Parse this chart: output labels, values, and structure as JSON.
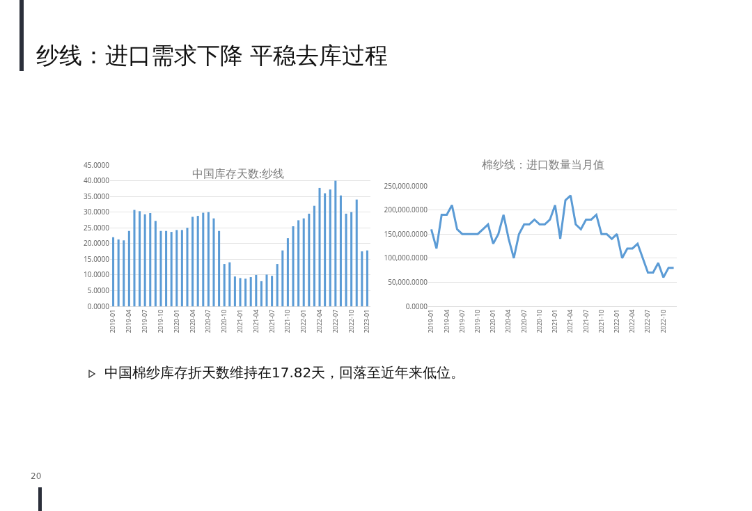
{
  "chart_data": [
    {
      "type": "other",
      "title": "纱线：进口需求下降 平稳去库过程",
      "annotations": [
        "中国棉纱库存折天数维持在17.82天，回落至近年来低位。",
        "20"
      ]
    },
    {
      "type": "bar",
      "title": "中国库存天数:纱线",
      "categories": [
        "2019-01",
        null,
        null,
        "2019-04",
        null,
        null,
        "2019-07",
        null,
        null,
        "2019-10",
        null,
        null,
        "2020-01",
        null,
        null,
        "2020-04",
        null,
        null,
        "2020-07",
        null,
        null,
        "2020-10",
        null,
        null,
        "2021-01",
        null,
        null,
        "2021-04",
        null,
        null,
        "2021-07",
        null,
        null,
        "2021-10",
        null,
        null,
        "2022-01",
        null,
        null,
        "2022-04",
        null,
        null,
        "2022-07",
        null,
        null,
        "2022-10",
        null,
        null,
        "2023-01"
      ],
      "series": [
        {
          "color": "#5b9bd5",
          "values": [
            22,
            21.3,
            21,
            24,
            30.7,
            30.3,
            29.3,
            29.7,
            27.2,
            24,
            24,
            23.7,
            24.3,
            24.3,
            25,
            28.5,
            28.8,
            29.8,
            30,
            28,
            24,
            13.5,
            14,
            9.5,
            9,
            8.8,
            9.3,
            10,
            8,
            10.1,
            9.7,
            13.5,
            17.8,
            21.7,
            25.5,
            27.4,
            28,
            29.5,
            32,
            37.7,
            36,
            37.2,
            40,
            35.3,
            29.5,
            30,
            34,
            17.5,
            17.8
          ]
        }
      ],
      "ylim": [
        0,
        45
      ],
      "yticks": [
        {
          "value": 0,
          "label": "0.0000"
        },
        {
          "value": 5,
          "label": "5.0000"
        },
        {
          "value": 10,
          "label": "10.0000"
        },
        {
          "value": 15,
          "label": "15.0000"
        },
        {
          "value": 20,
          "label": "20.0000"
        },
        {
          "value": 25,
          "label": "25.0000"
        },
        {
          "value": 30,
          "label": "30.0000"
        },
        {
          "value": 35,
          "label": "35.0000"
        },
        {
          "value": 40,
          "label": "40.0000"
        },
        {
          "value": 45,
          "label": "45.0000"
        }
      ],
      "grid": "y"
    },
    {
      "type": "line",
      "title": "棉纱线：进口数量当月值",
      "categories": [
        "2019-01",
        null,
        null,
        "2019-04",
        null,
        null,
        "2019-07",
        null,
        null,
        "2019-10",
        null,
        null,
        "2020-01",
        null,
        null,
        "2020-04",
        null,
        null,
        "2020-07",
        null,
        null,
        "2020-10",
        null,
        null,
        "2021-01",
        null,
        null,
        "2021-04",
        null,
        null,
        "2021-07",
        null,
        null,
        "2021-10",
        null,
        null,
        "2022-01",
        null,
        null,
        "2022-04",
        null,
        null,
        "2022-07",
        null,
        null,
        "2022-10",
        null,
        null
      ],
      "series": [
        {
          "color": "#5b9bd5",
          "values": [
            160000,
            120000,
            190000,
            190000,
            210000,
            160000,
            150000,
            150000,
            150000,
            150000,
            160000,
            170000,
            130000,
            150000,
            190000,
            140000,
            100000,
            150000,
            170000,
            170000,
            180000,
            170000,
            170000,
            180000,
            210000,
            140000,
            220000,
            230000,
            170000,
            160000,
            180000,
            180000,
            190000,
            150000,
            150000,
            140000,
            150000,
            100000,
            120000,
            120000,
            130000,
            100000,
            70000,
            70000,
            90000,
            60000,
            80000,
            80000
          ]
        }
      ],
      "ylim": [
        0,
        250000
      ],
      "yticks": [
        {
          "value": 0,
          "label": "0.0000"
        },
        {
          "value": 50000,
          "label": "50,000.0000"
        },
        {
          "value": 100000,
          "label": "100,000.0000"
        },
        {
          "value": 150000,
          "label": "150,000.0000"
        },
        {
          "value": 200000,
          "label": "200,000.0000"
        },
        {
          "value": 250000,
          "label": "250,000.0000"
        }
      ],
      "grid": "y",
      "marker": "none",
      "line_style": "solid"
    }
  ]
}
